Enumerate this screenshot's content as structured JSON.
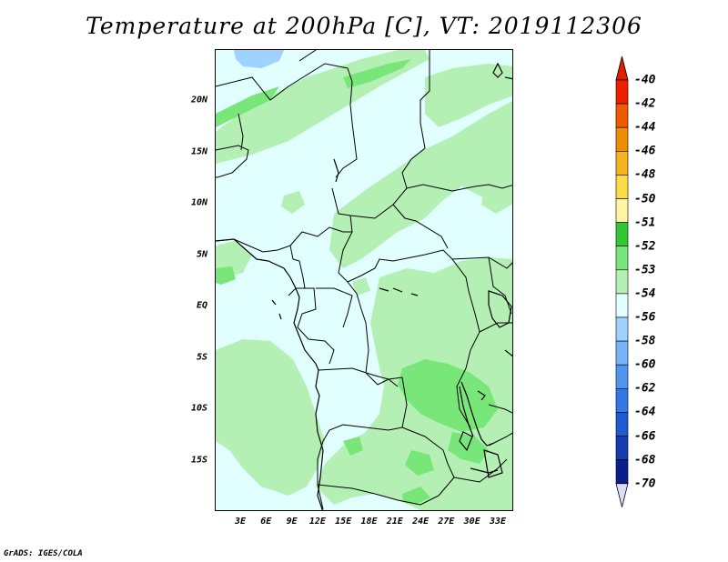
{
  "title": "Temperature at 200hPa [C], VT: 2019112306",
  "credit": "GrADS: IGES/COLA",
  "map": {
    "lat_labels": [
      "20N",
      "15N",
      "10N",
      "5N",
      "EQ",
      "5S",
      "10S",
      "15S"
    ],
    "lon_labels": [
      "3E",
      "6E",
      "9E",
      "12E",
      "15E",
      "18E",
      "21E",
      "24E",
      "27E",
      "30E",
      "33E"
    ],
    "lat_range": [
      -20,
      25
    ],
    "lon_range": [
      0,
      35
    ],
    "base_fill": "#e1ffff",
    "shading": {
      "level_53_to_52": "#b4f0b4",
      "level_52_to_51": "#78e678",
      "level_56_to_54": "#a0d2ff"
    }
  },
  "colorbar": {
    "labels": [
      "-40",
      "-42",
      "-44",
      "-46",
      "-48",
      "-50",
      "-51",
      "-52",
      "-53",
      "-54",
      "-56",
      "-58",
      "-60",
      "-62",
      "-64",
      "-66",
      "-68",
      "-70"
    ],
    "colors": [
      "#f01e00",
      "#f05a00",
      "#f08c00",
      "#f5b41e",
      "#fadc46",
      "#fff5a0",
      "#32c832",
      "#78e678",
      "#b4f0b4",
      "#e1ffff",
      "#a0d2ff",
      "#78b4fa",
      "#5096f0",
      "#3278e6",
      "#1e5ad2",
      "#143cb4",
      "#0a1e8c"
    ],
    "top_arrow_color": "#e11e00",
    "bottom_arrow_color": "#dcdcf5"
  }
}
